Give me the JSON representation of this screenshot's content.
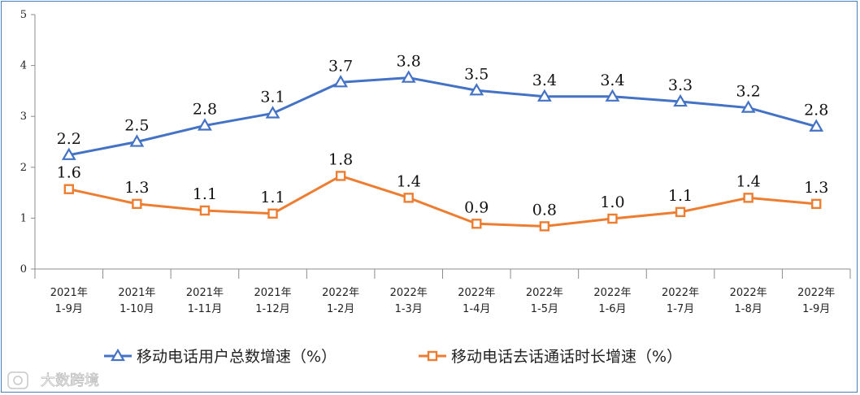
{
  "chart_data": {
    "type": "line",
    "categories": [
      [
        "2021年",
        "1-9月"
      ],
      [
        "2021年",
        "1-10月"
      ],
      [
        "2021年",
        "1-11月"
      ],
      [
        "2021年",
        "1-12月"
      ],
      [
        "2022年",
        "1-2月"
      ],
      [
        "2022年",
        "1-3月"
      ],
      [
        "2022年",
        "1-4月"
      ],
      [
        "2022年",
        "1-5月"
      ],
      [
        "2022年",
        "1-6月"
      ],
      [
        "2022年",
        "1-7月"
      ],
      [
        "2022年",
        "1-8月"
      ],
      [
        "2022年",
        "1-9月"
      ]
    ],
    "ylim": [
      0,
      5
    ],
    "yticks": [
      "0",
      "1",
      "2",
      "3",
      "4",
      "5"
    ],
    "grid": false,
    "legend_position": "bottom",
    "series": [
      {
        "name": "移动电话用户总数增速（%）",
        "marker": "triangle",
        "color": "#4472c4",
        "values": [
          2.24,
          2.5,
          2.82,
          3.06,
          3.67,
          3.76,
          3.51,
          3.39,
          3.39,
          3.29,
          3.17,
          2.8
        ],
        "labels": [
          "2.2",
          "2.5",
          "2.8",
          "3.1",
          "3.7",
          "3.8",
          "3.5",
          "3.4",
          "3.4",
          "3.3",
          "3.2",
          "2.8"
        ]
      },
      {
        "name": "移动电话去话通话时长增速（%）",
        "marker": "square",
        "color": "#ed7d31",
        "values": [
          1.57,
          1.28,
          1.15,
          1.09,
          1.83,
          1.4,
          0.89,
          0.84,
          0.99,
          1.12,
          1.4,
          1.28
        ],
        "labels": [
          "1.6",
          "1.3",
          "1.1",
          "1.1",
          "1.8",
          "1.4",
          "0.9",
          "0.8",
          "1.0",
          "1.1",
          "1.4",
          "1.3"
        ]
      }
    ]
  },
  "watermark": {
    "text": "大数跨境",
    "icon": "camera-logo-icon"
  }
}
